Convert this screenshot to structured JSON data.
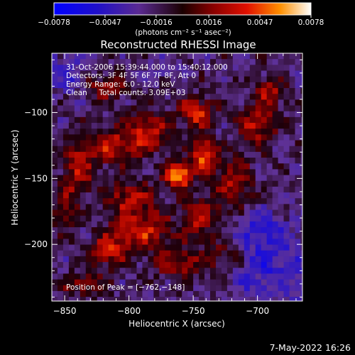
{
  "chart_data": {
    "type": "heatmap",
    "title": "Reconstructed RHESSI Image",
    "xlabel": "Heliocentric X (arcsec)",
    "ylabel": "Heliocentric Y (arcsec)",
    "xlim": [
      -860,
      -665
    ],
    "ylim": [
      -243,
      -55
    ],
    "x_ticks": [
      -850,
      -800,
      -750,
      -700
    ],
    "x_tick_labels": [
      "−850",
      "−800",
      "−750",
      "−700"
    ],
    "y_ticks": [
      -100,
      -150,
      -200
    ],
    "y_tick_labels": [
      "−100",
      "−150",
      "−200"
    ],
    "colorbar": {
      "range": [
        -0.0078,
        0.0078
      ],
      "ticks": [
        -0.0078,
        -0.0047,
        -0.0016,
        0.0016,
        0.0047,
        0.0078
      ],
      "tick_labels": [
        "−0.0078",
        "−0.0047",
        "−0.0016",
        "0.0016",
        "0.0047",
        "0.0078"
      ],
      "unit_label": "(photons cm⁻² s⁻¹ asec⁻²)"
    },
    "annotations": [
      "31-Oct-2006 15:39:44.000 to 15:40:12.000",
      "Detectors: 3F 4F 5F 6F 7F 8F, Att 0",
      "Energy Range: 6.0 - 12.0 keV",
      "Clean     Total counts: 3.09E+03"
    ],
    "peak": {
      "x": -762,
      "y": -148,
      "label": "Position of Peak = [−762,−148]"
    },
    "blobs": [
      {
        "x": -762,
        "y": -148,
        "amp": 1.0,
        "sx": 7,
        "sy": 6
      },
      {
        "x": -742,
        "y": -132,
        "amp": 0.75,
        "sx": 7,
        "sy": 9
      },
      {
        "x": -748,
        "y": -100,
        "amp": 0.6,
        "sx": 10,
        "sy": 8
      },
      {
        "x": -785,
        "y": -115,
        "amp": 0.55,
        "sx": 12,
        "sy": 10
      },
      {
        "x": -815,
        "y": -125,
        "amp": 0.5,
        "sx": 14,
        "sy": 10
      },
      {
        "x": -840,
        "y": -145,
        "amp": 0.5,
        "sx": 8,
        "sy": 14
      },
      {
        "x": -800,
        "y": -165,
        "amp": 0.45,
        "sx": 14,
        "sy": 10
      },
      {
        "x": -790,
        "y": -190,
        "amp": 0.55,
        "sx": 16,
        "sy": 10
      },
      {
        "x": -815,
        "y": -205,
        "amp": 0.55,
        "sx": 10,
        "sy": 8
      },
      {
        "x": -745,
        "y": -180,
        "amp": 0.45,
        "sx": 10,
        "sy": 12
      },
      {
        "x": -718,
        "y": -155,
        "amp": 0.45,
        "sx": 10,
        "sy": 14
      },
      {
        "x": -700,
        "y": -110,
        "amp": 0.5,
        "sx": 10,
        "sy": 10
      },
      {
        "x": -690,
        "y": -85,
        "amp": 0.45,
        "sx": 8,
        "sy": 8
      },
      {
        "x": -820,
        "y": -80,
        "amp": 0.4,
        "sx": 12,
        "sy": 8
      },
      {
        "x": -760,
        "y": -215,
        "amp": 0.4,
        "sx": 14,
        "sy": 8
      },
      {
        "x": -725,
        "y": -210,
        "amp": 0.35,
        "sx": 10,
        "sy": 8
      },
      {
        "x": -835,
        "y": -230,
        "amp": 0.35,
        "sx": 12,
        "sy": 6
      },
      {
        "x": -850,
        "y": -175,
        "amp": 0.35,
        "sx": 6,
        "sy": 10
      }
    ],
    "negative_regions": [
      {
        "x": -690,
        "y": -215,
        "amp": -0.35,
        "sx": 22,
        "sy": 22
      },
      {
        "x": -845,
        "y": -70,
        "amp": -0.25,
        "sx": 14,
        "sy": 12
      },
      {
        "x": -700,
        "y": -185,
        "amp": -0.2,
        "sx": 12,
        "sy": 10
      },
      {
        "x": -775,
        "y": -65,
        "amp": -0.15,
        "sx": 10,
        "sy": 8
      }
    ]
  },
  "footer": {
    "date_stamp": "7-May-2022 16:26"
  }
}
